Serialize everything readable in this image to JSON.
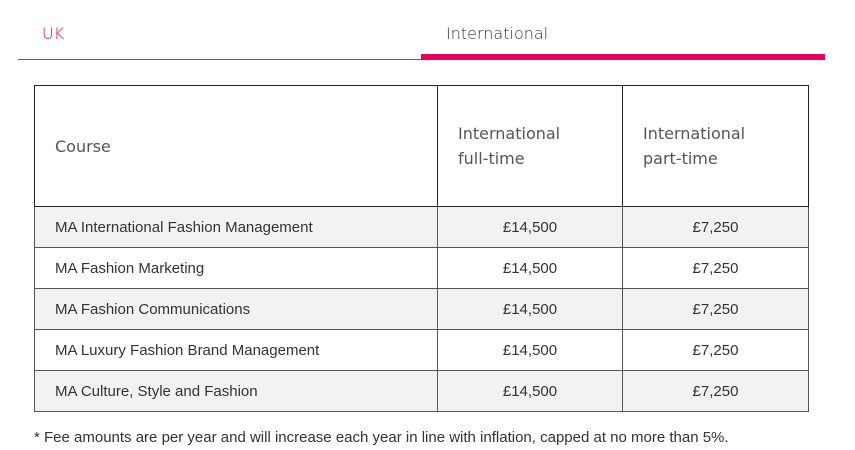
{
  "tabs": [
    {
      "label": "UK",
      "active": false
    },
    {
      "label": "International",
      "active": true
    }
  ],
  "accent_color": "#e6005c",
  "table": {
    "headers": [
      "Course",
      "International full-time",
      "International part-time"
    ],
    "rows": [
      [
        "MA International Fashion Management",
        "£14,500",
        "£7,250"
      ],
      [
        "MA Fashion Marketing",
        "£14,500",
        "£7,250"
      ],
      [
        "MA Fashion Communications",
        "£14,500",
        "£7,250"
      ],
      [
        "MA Luxury Fashion Brand Management",
        "£14,500",
        "£7,250"
      ],
      [
        "MA Culture, Style and Fashion",
        "£14,500",
        "£7,250"
      ]
    ]
  },
  "footnote": "* Fee amounts are per year and will increase each year in line with inflation, capped at no more than 5%."
}
